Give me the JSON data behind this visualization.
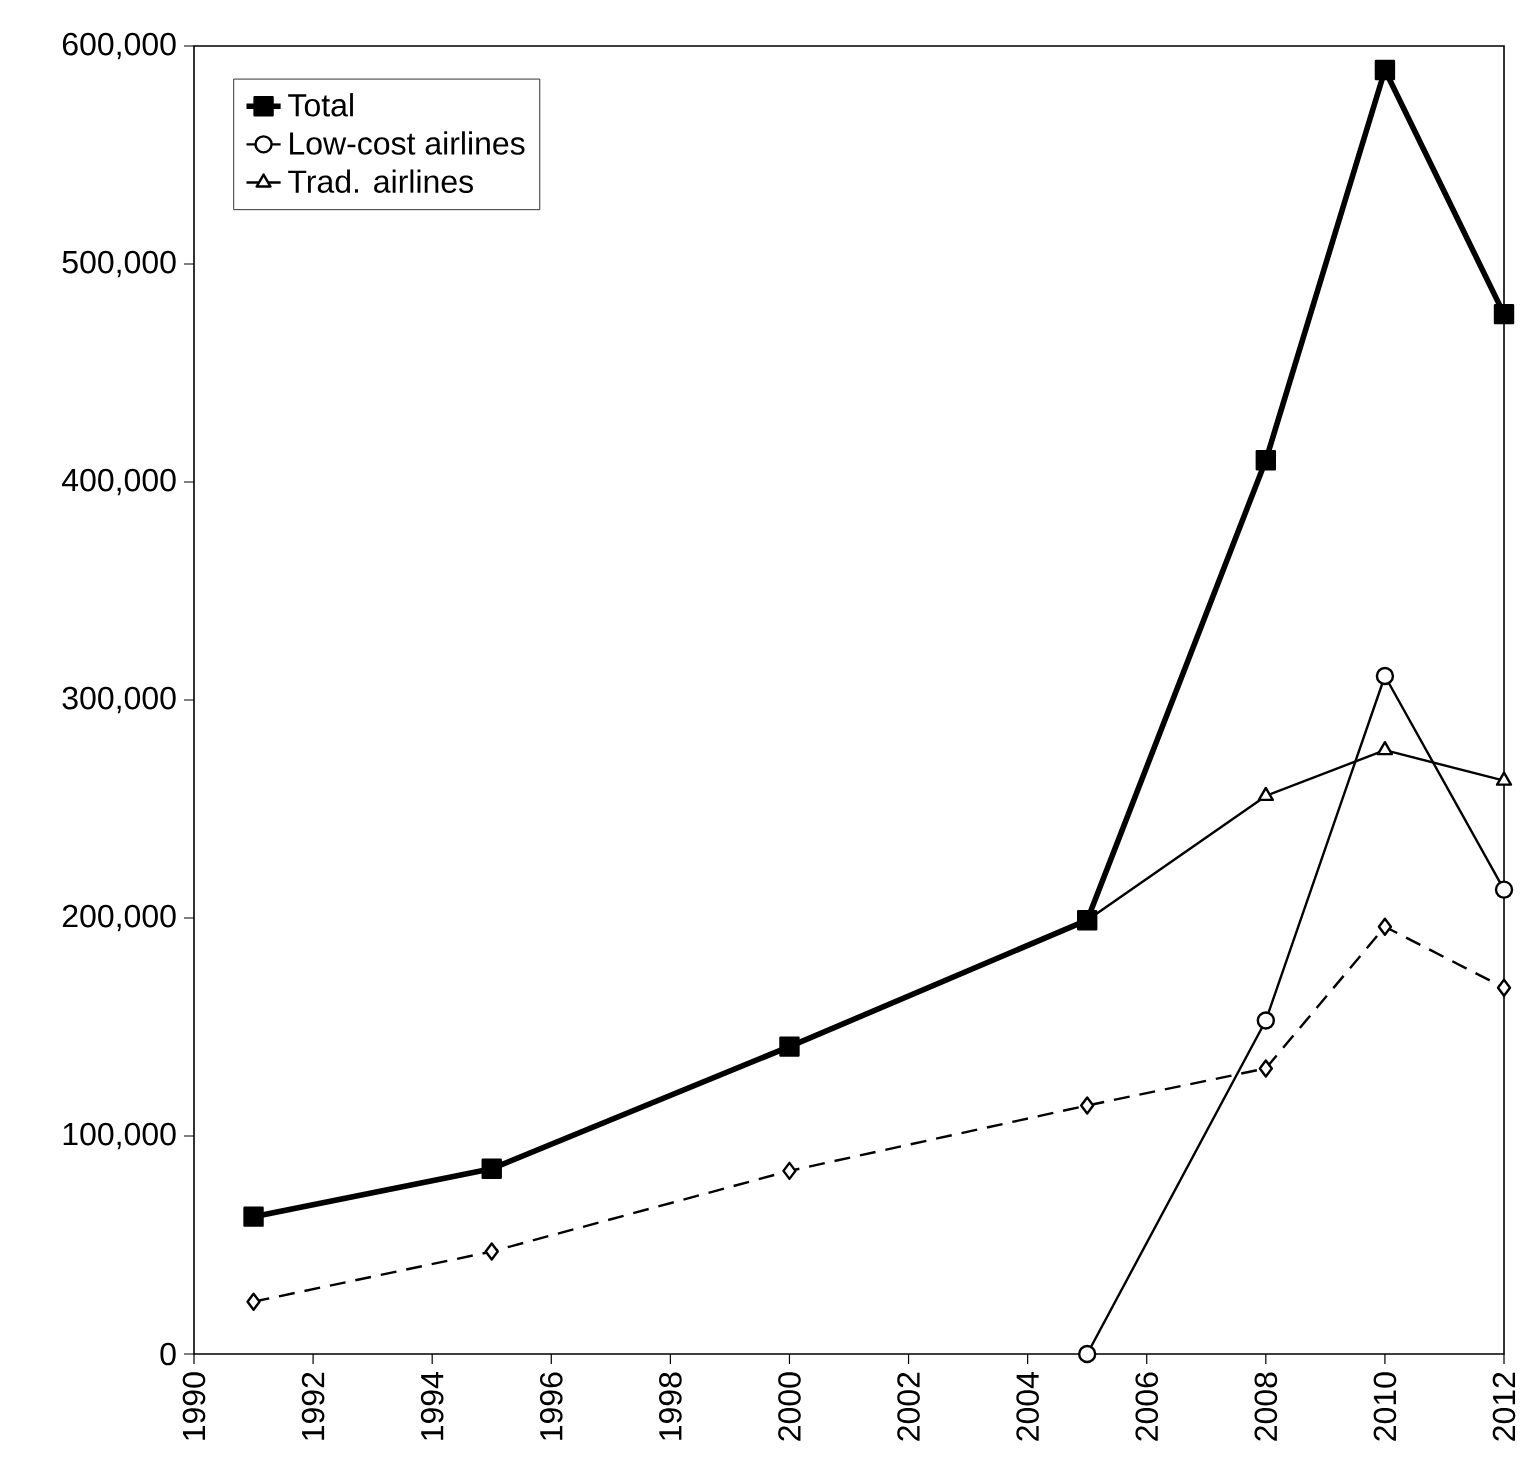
{
  "chart_data": {
    "type": "line",
    "x": [
      1991,
      1995,
      2000,
      2005,
      2008,
      2010,
      2012
    ],
    "series": [
      {
        "name": "Total",
        "color": "#000000",
        "marker": "square",
        "line_style": "solid",
        "values": [
          63000,
          85000,
          141000,
          199000,
          410000,
          589000,
          477000
        ]
      },
      {
        "name": "Low-cost airlines",
        "color": "#000000",
        "marker": "circle",
        "line_style": "solid",
        "values": [
          null,
          null,
          null,
          0,
          153000,
          311000,
          213000
        ]
      },
      {
        "name": "Trad. airlines",
        "color": "#000000",
        "marker": "triangle",
        "line_style": "solid",
        "values": [
          63000,
          85000,
          141000,
          199000,
          256000,
          277000,
          263000
        ]
      },
      {
        "color": "#000000",
        "marker": "diamond",
        "line_style": "dashed",
        "values": [
          24000,
          47000,
          84000,
          114000,
          131000,
          196000,
          168000
        ]
      }
    ],
    "xlim": [
      1990,
      2012
    ],
    "ylim": [
      0,
      600000
    ],
    "xticks": [
      1990,
      1992,
      1994,
      1996,
      1998,
      2000,
      2002,
      2004,
      2006,
      2008,
      2010,
      2012
    ],
    "yticks": [
      {
        "value": 0,
        "label": "0"
      },
      {
        "value": 100000,
        "label": "100,000"
      },
      {
        "value": 200000,
        "label": "200,000"
      },
      {
        "value": 300000,
        "label": "300,000"
      },
      {
        "value": 400000,
        "label": "400,000"
      },
      {
        "value": 500000,
        "label": "500,000"
      },
      {
        "value": 600000,
        "label": "600,000"
      }
    ],
    "grid": false,
    "legend": "top left"
  }
}
